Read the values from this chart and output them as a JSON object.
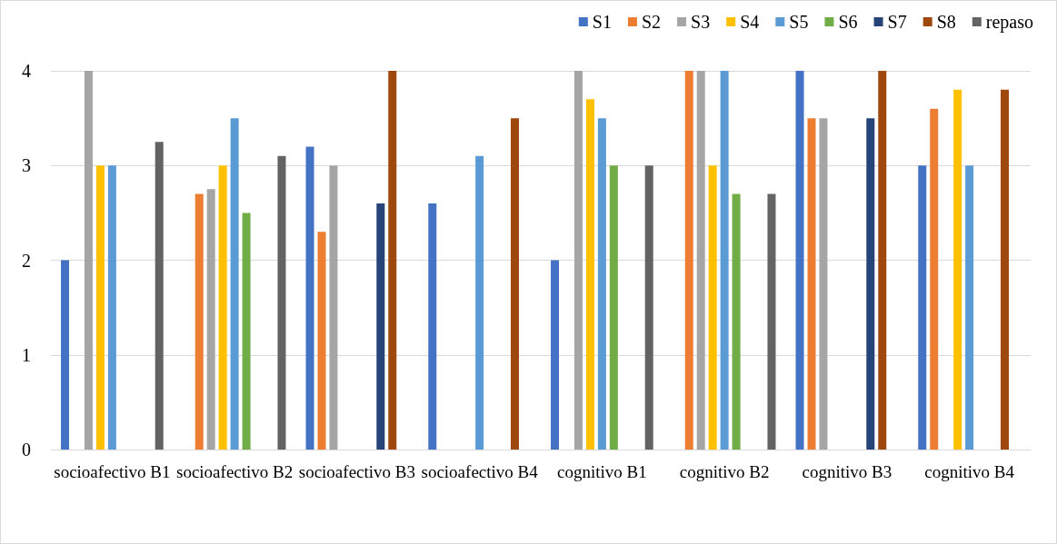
{
  "chart_data": {
    "type": "bar",
    "categories": [
      "socioafectivo B1",
      "socioafectivo B2",
      "socioafectivo B3",
      "socioafectivo B4",
      "cognitivo B1",
      "cognitivo B2",
      "cognitivo B3",
      "cognitivo B4"
    ],
    "series": [
      {
        "name": "S1",
        "color": "#4472c4",
        "values": [
          2,
          null,
          3.2,
          2.6,
          2,
          null,
          4,
          3
        ]
      },
      {
        "name": "S2",
        "color": "#ed7d31",
        "values": [
          null,
          2.7,
          2.3,
          null,
          null,
          4,
          3.5,
          3.6
        ]
      },
      {
        "name": "S3",
        "color": "#a5a5a5",
        "values": [
          4,
          2.75,
          3,
          null,
          4,
          4,
          3.5,
          null
        ]
      },
      {
        "name": "S4",
        "color": "#ffc000",
        "values": [
          3,
          3,
          null,
          null,
          3.7,
          3,
          null,
          3.8
        ]
      },
      {
        "name": "S5",
        "color": "#5b9bd5",
        "values": [
          3,
          3.5,
          null,
          3.1,
          3.5,
          4,
          null,
          3
        ]
      },
      {
        "name": "S6",
        "color": "#70ad47",
        "values": [
          null,
          2.5,
          null,
          null,
          3,
          2.7,
          null,
          null
        ]
      },
      {
        "name": "S7",
        "color": "#264478",
        "values": [
          null,
          null,
          2.6,
          null,
          null,
          null,
          3.5,
          null
        ]
      },
      {
        "name": "S8",
        "color": "#9e480e",
        "values": [
          null,
          null,
          4,
          3.5,
          null,
          null,
          4,
          3.8
        ]
      },
      {
        "name": "repaso",
        "color": "#636363",
        "values": [
          3.25,
          3.1,
          null,
          null,
          3,
          2.7,
          null,
          null
        ]
      }
    ],
    "ylim": [
      0,
      4
    ],
    "yticks": [
      0,
      1,
      2,
      3,
      4
    ],
    "grid": "y",
    "legend": "top right"
  }
}
